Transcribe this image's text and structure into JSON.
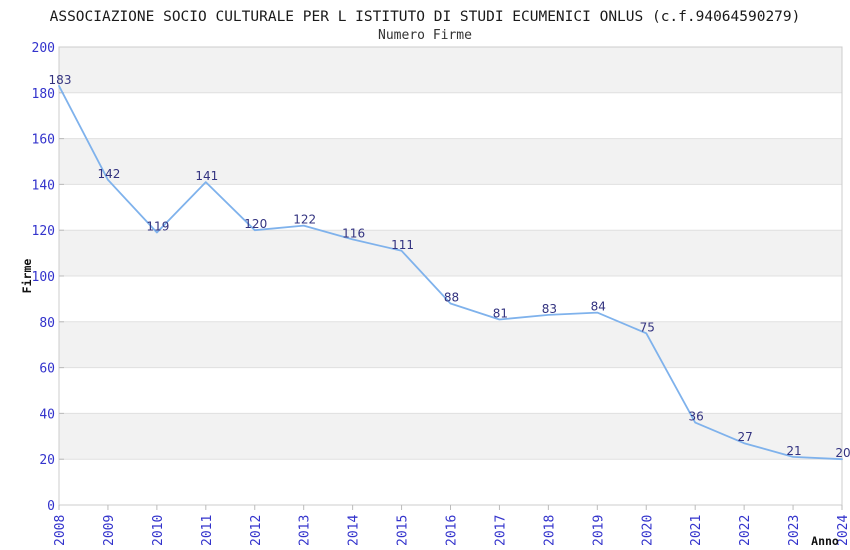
{
  "chart_data": {
    "type": "line",
    "title": "ASSOCIAZIONE SOCIO CULTURALE PER L ISTITUTO DI STUDI ECUMENICI ONLUS (c.f.94064590279)",
    "subtitle": "Numero Firme",
    "xlabel": "Anno",
    "ylabel": "Firme",
    "categories": [
      "2008",
      "2009",
      "2010",
      "2011",
      "2012",
      "2013",
      "2014",
      "2015",
      "2016",
      "2017",
      "2018",
      "2019",
      "2020",
      "2021",
      "2022",
      "2023",
      "2024"
    ],
    "values": [
      183,
      142,
      119,
      141,
      120,
      122,
      116,
      111,
      88,
      81,
      83,
      84,
      75,
      36,
      27,
      21,
      20
    ],
    "ylim": [
      0,
      200
    ],
    "ytick_step": 20,
    "grid": true,
    "legend_position": "none",
    "colors": {
      "line": "#7fb2ec",
      "tick_label": "#3333cc",
      "value_label": "#333380",
      "band_dark": "#f2f2f2",
      "band_light": "#ffffff",
      "gridline": "#e0e0e0",
      "border": "#cccccc",
      "tick_mark": "#bbbbbb"
    }
  }
}
